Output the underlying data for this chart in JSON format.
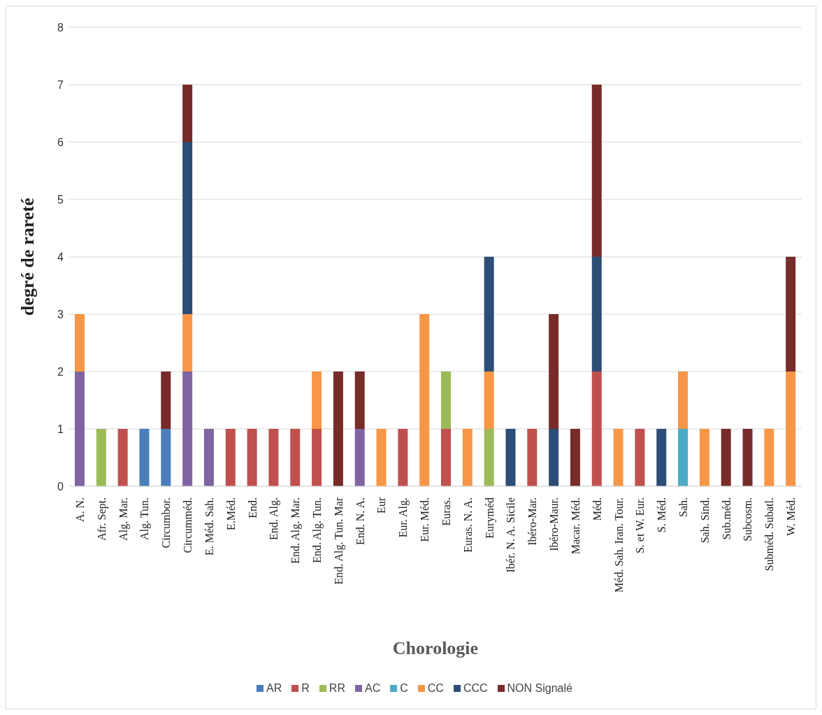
{
  "chart_data": {
    "type": "bar",
    "stacked": true,
    "xlabel": "Chorologie",
    "ylabel": "degré de rareté",
    "categories": [
      "A. N.",
      "Afr. Sept.",
      "Alg. Mar.",
      "Alg. Tun.",
      "Circumbor.",
      "Circumméd.",
      "E. Méd. Sah.",
      "E.Méd.",
      "End.",
      "End. Alg.",
      "End. Alg. Mar.",
      "End. Alg. Tun.",
      "End. Alg. Tun. Mar",
      "End. N. A.",
      "Eur",
      "Eur. Alg.",
      "Eur. Méd.",
      "Euras.",
      "Euras. N. A.",
      "Euryméd",
      "Ibér. N. A. Sicile",
      "Ibéro-Mar.",
      "Ibéro-Maur.",
      "Macar. Méd.",
      "Méd.",
      "Méd. Sah. Iran. Tour.",
      "S. et W. Eur.",
      "S. Méd.",
      "Sah.",
      "Sah. Sind.",
      "Sub.méd.",
      "Subcosm.",
      "Subméd. Subatl.",
      "W. Méd."
    ],
    "series": [
      {
        "name": "AR",
        "color": "#4a7ebb",
        "values": [
          null,
          null,
          null,
          1,
          1,
          null,
          null,
          null,
          null,
          null,
          null,
          null,
          null,
          null,
          null,
          null,
          null,
          null,
          null,
          null,
          null,
          null,
          null,
          null,
          null,
          null,
          null,
          null,
          null,
          null,
          null,
          null,
          null,
          null
        ]
      },
      {
        "name": "R",
        "color": "#c0504d",
        "values": [
          null,
          null,
          1,
          null,
          null,
          null,
          null,
          1,
          1,
          1,
          1,
          1,
          null,
          null,
          null,
          1,
          null,
          1,
          null,
          null,
          null,
          1,
          null,
          null,
          2,
          null,
          1,
          null,
          null,
          null,
          null,
          null,
          null,
          null
        ]
      },
      {
        "name": "RR",
        "color": "#9bbb59",
        "values": [
          null,
          1,
          null,
          null,
          null,
          null,
          null,
          null,
          null,
          null,
          null,
          null,
          null,
          null,
          null,
          null,
          null,
          1,
          null,
          1,
          null,
          null,
          null,
          null,
          null,
          null,
          null,
          null,
          null,
          null,
          null,
          null,
          null,
          null
        ]
      },
      {
        "name": "AC",
        "color": "#8064a2",
        "values": [
          2,
          null,
          null,
          null,
          null,
          2,
          1,
          null,
          null,
          null,
          null,
          null,
          null,
          1,
          null,
          null,
          null,
          null,
          null,
          null,
          null,
          null,
          null,
          null,
          null,
          null,
          null,
          null,
          null,
          null,
          null,
          null,
          null,
          null
        ]
      },
      {
        "name": "C",
        "color": "#4bacc6",
        "values": [
          null,
          null,
          null,
          null,
          null,
          null,
          null,
          null,
          null,
          null,
          null,
          null,
          null,
          null,
          null,
          null,
          null,
          null,
          null,
          null,
          null,
          null,
          null,
          null,
          null,
          null,
          null,
          null,
          1,
          null,
          null,
          null,
          null,
          null
        ]
      },
      {
        "name": "CC",
        "color": "#f79646",
        "values": [
          1,
          null,
          null,
          null,
          null,
          1,
          null,
          null,
          null,
          null,
          null,
          1,
          null,
          null,
          1,
          null,
          3,
          null,
          1,
          1,
          null,
          null,
          null,
          null,
          null,
          1,
          null,
          null,
          1,
          1,
          null,
          null,
          1,
          2
        ]
      },
      {
        "name": "CCC",
        "color": "#2c4d75",
        "values": [
          null,
          null,
          null,
          null,
          null,
          3,
          null,
          null,
          null,
          null,
          null,
          null,
          null,
          null,
          null,
          null,
          null,
          null,
          null,
          2,
          1,
          null,
          1,
          null,
          2,
          null,
          null,
          1,
          null,
          null,
          null,
          null,
          null,
          null
        ]
      },
      {
        "name": "NON Signalé",
        "color": "#772c2a",
        "values": [
          null,
          null,
          null,
          null,
          1,
          1,
          null,
          null,
          null,
          null,
          null,
          null,
          2,
          1,
          null,
          null,
          null,
          null,
          null,
          null,
          null,
          null,
          2,
          1,
          3,
          null,
          null,
          null,
          null,
          null,
          1,
          1,
          null,
          2
        ]
      }
    ],
    "ylim": [
      0,
      8
    ],
    "yticks": [
      0,
      1,
      2,
      3,
      4,
      5,
      6,
      7,
      8
    ],
    "grid": "y",
    "legend": "bottom"
  }
}
